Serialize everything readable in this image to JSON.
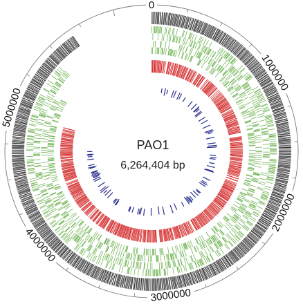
{
  "genome": {
    "name": "PAO1",
    "size_label": "6,264,404 bp",
    "length_bp": 6264404
  },
  "scale": {
    "ticks": [
      {
        "value": 0,
        "label": "0"
      },
      {
        "value": 1000000,
        "label": "1000000"
      },
      {
        "value": 2000000,
        "label": "2000000"
      },
      {
        "value": 3000000,
        "label": "3000000"
      },
      {
        "value": 4000000,
        "label": "4000000"
      },
      {
        "value": 5000000,
        "label": "5000000"
      }
    ],
    "minor_tick_step_bp": 250000
  },
  "tracks": [
    {
      "id": "track-1",
      "color": "#2f2f2f",
      "extent_bp": [
        0,
        6264404
      ],
      "density": 1.0
    },
    {
      "id": "track-2",
      "color": "#6ab04c",
      "extent_bp": [
        0,
        6264404
      ],
      "density": 0.9
    },
    {
      "id": "track-3",
      "color": "#6ab04c",
      "extent_bp": [
        0,
        6264404
      ],
      "density": 0.85
    },
    {
      "id": "track-4",
      "color": "#d42a2a",
      "extent_bp": [
        0,
        6264404
      ],
      "density": 0.85
    },
    {
      "id": "track-5",
      "color": "#2b2e8f",
      "extent_bp": [
        0,
        6264404
      ],
      "density": 0.35
    }
  ]
}
